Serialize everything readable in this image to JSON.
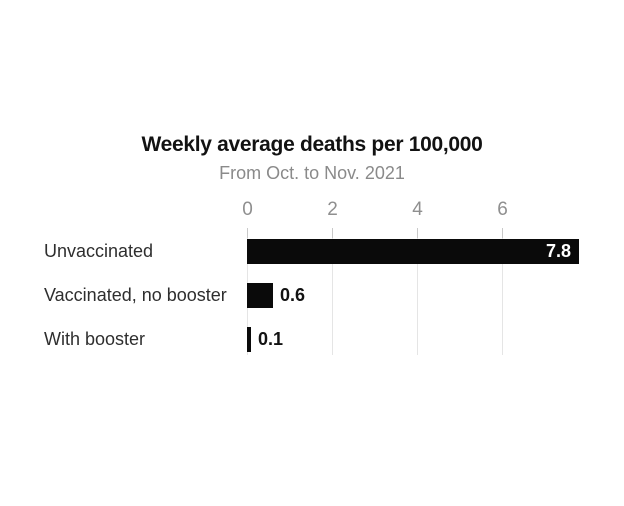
{
  "chart_data": {
    "type": "bar",
    "orientation": "horizontal",
    "title": "Weekly average deaths per 100,000",
    "subtitle": "From Oct. to Nov. 2021",
    "categories": [
      "Unvaccinated",
      "Vaccinated, no booster",
      "With booster"
    ],
    "values": [
      7.8,
      0.6,
      0.1
    ],
    "value_labels": [
      "7.8",
      "0.6",
      "0.1"
    ],
    "x_ticks": [
      0,
      2,
      4,
      6
    ],
    "xlim": [
      0,
      7.8
    ],
    "grid": true,
    "legend": "none",
    "xlabel": "",
    "ylabel": "",
    "colors": {
      "background": "#ffffff",
      "bar": "#0a0a0a",
      "title_text": "#121212",
      "subtitle_text": "#8a8a8a",
      "axis_tick_text": "#8f8f8f",
      "gridline": "#e5e5e5",
      "tick_mark": "#c9c9c9",
      "category_text": "#2e2e2e",
      "value_inside_text": "#ffffff",
      "value_outside_text": "#121212"
    }
  }
}
